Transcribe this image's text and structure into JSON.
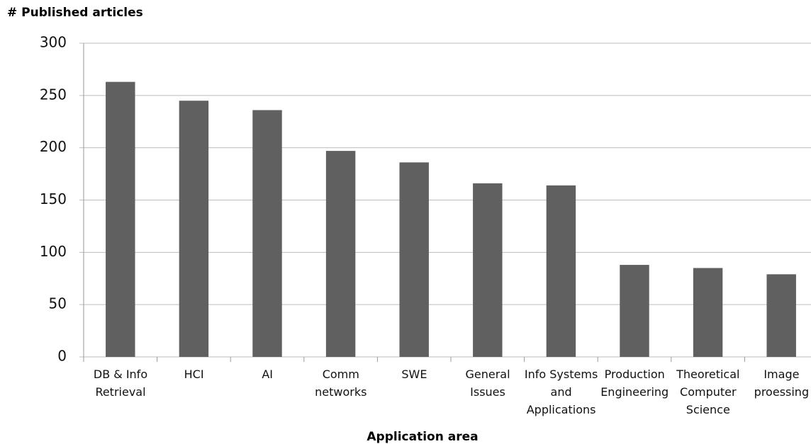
{
  "chart_data": {
    "type": "bar",
    "title": "# Published articles",
    "x_label": "Application area",
    "categories": [
      "DB & Info Retrieval",
      "HCI",
      "AI",
      "Comm networks",
      "SWE",
      "General Issues",
      "Info Systems and Applications",
      "Production Engineering",
      "Theoretical Computer Science",
      "Image proessing"
    ],
    "values": [
      263,
      245,
      236,
      197,
      186,
      166,
      164,
      88,
      85,
      79
    ],
    "color": "#606060",
    "ylim": [
      0,
      300
    ],
    "yticks": [
      0,
      50,
      100,
      150,
      200,
      250,
      300
    ],
    "grid": true
  }
}
